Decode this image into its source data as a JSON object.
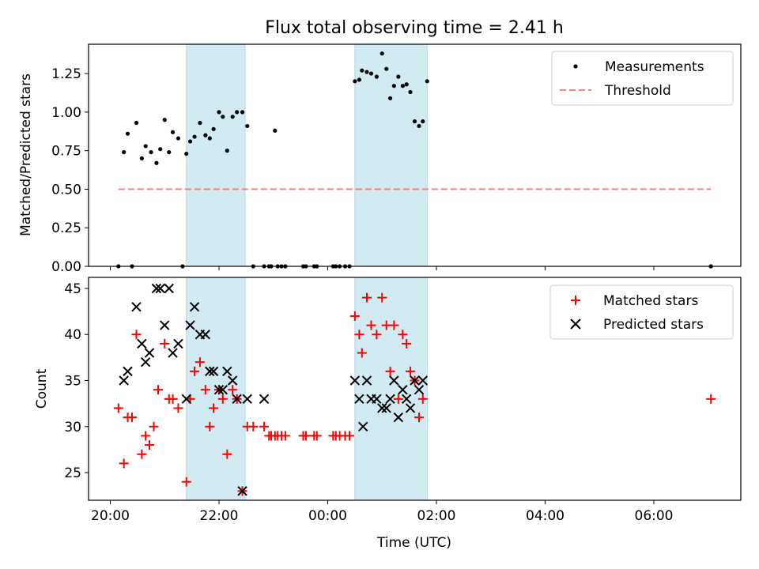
{
  "figure": {
    "title": "Flux total observing time = 2.41 h",
    "xlabel": "Time (UTC)",
    "x_ticks": [
      "20:00",
      "22:00",
      "00:00",
      "02:00",
      "04:00",
      "06:00"
    ],
    "x_tick_values_hours": [
      20,
      22,
      24,
      26,
      28,
      30
    ],
    "x_range_hours": [
      19.6,
      31.6
    ],
    "shaded_intervals_hours": [
      [
        21.4,
        22.48
      ],
      [
        24.5,
        25.83
      ]
    ],
    "shade_color": "#add8e6"
  },
  "chart_data": [
    {
      "type": "scatter",
      "ylabel": "Matched/Predicted stars",
      "ylim": [
        0,
        1.44
      ],
      "y_ticks": [
        0.0,
        0.25,
        0.5,
        0.75,
        1.0,
        1.25
      ],
      "y_tick_labels": [
        "0.00",
        "0.25",
        "0.50",
        "0.75",
        "1.00",
        "1.25"
      ],
      "legend_position": "top-right",
      "series": [
        {
          "name": "Measurements",
          "color": "#000000",
          "marker": "dot",
          "x": [
            20.15,
            20.25,
            20.4,
            20.32,
            20.48,
            20.58,
            20.65,
            20.75,
            20.85,
            20.92,
            21.0,
            21.08,
            21.15,
            21.25,
            21.33,
            21.4,
            21.47,
            21.55,
            21.65,
            21.75,
            21.83,
            21.9,
            22.0,
            22.07,
            22.15,
            22.25,
            22.33,
            22.43,
            22.52,
            22.63,
            22.83,
            22.92,
            22.96,
            23.03,
            23.08,
            23.15,
            23.22,
            23.55,
            23.6,
            23.75,
            23.8,
            24.1,
            24.15,
            24.22,
            24.32,
            24.4,
            24.5,
            24.58,
            24.63,
            24.72,
            24.8,
            24.9,
            25.0,
            25.08,
            25.15,
            25.22,
            25.3,
            25.38,
            25.45,
            25.52,
            25.6,
            25.68,
            25.75,
            25.83,
            31.05
          ],
          "y": [
            0,
            0.74,
            0,
            0.86,
            0.93,
            0.7,
            0.78,
            0.74,
            0.67,
            0.76,
            0.95,
            0.74,
            0.87,
            0.83,
            0,
            0.73,
            0.81,
            0.84,
            0.93,
            0.85,
            0.83,
            0.89,
            1.0,
            0.97,
            0.75,
            0.97,
            1.0,
            1.0,
            0.91,
            0,
            0,
            0,
            0,
            0.88,
            0,
            0,
            0,
            0,
            0,
            0,
            0,
            0,
            0,
            0,
            0,
            0,
            1.2,
            1.21,
            1.27,
            1.26,
            1.25,
            1.23,
            1.38,
            1.28,
            1.09,
            1.17,
            1.23,
            1.17,
            1.18,
            1.13,
            0.94,
            0.91,
            0.94,
            1.2,
            0
          ]
        },
        {
          "name": "Threshold",
          "color": "#ff7f7f",
          "style": "dashed",
          "x": [
            20.15,
            31.05
          ],
          "y": [
            0.5,
            0.5
          ]
        }
      ]
    },
    {
      "type": "scatter",
      "ylabel": "Count",
      "ylim": [
        22,
        46.2
      ],
      "y_ticks": [
        25,
        30,
        35,
        40,
        45
      ],
      "y_tick_labels": [
        "25",
        "30",
        "35",
        "40",
        "45"
      ],
      "legend_position": "top-right",
      "series": [
        {
          "name": "Matched stars",
          "color": "#ff0000",
          "marker": "plus",
          "x": [
            20.15,
            20.25,
            20.32,
            20.4,
            20.48,
            20.58,
            20.65,
            20.72,
            20.8,
            20.88,
            21.0,
            21.08,
            21.15,
            21.25,
            21.4,
            21.47,
            21.55,
            21.65,
            21.75,
            21.83,
            21.9,
            22.0,
            22.07,
            22.15,
            22.25,
            22.33,
            22.43,
            22.52,
            22.63,
            22.83,
            22.92,
            22.96,
            23.03,
            23.08,
            23.15,
            23.22,
            23.55,
            23.6,
            23.75,
            23.8,
            24.1,
            24.15,
            24.22,
            24.32,
            24.4,
            24.5,
            24.58,
            24.63,
            24.72,
            24.8,
            24.9,
            25.0,
            25.08,
            25.15,
            25.22,
            25.3,
            25.38,
            25.45,
            25.52,
            25.6,
            25.68,
            25.75,
            31.05
          ],
          "y": [
            32,
            26,
            31,
            31,
            40,
            27,
            29,
            28,
            30,
            34,
            39,
            33,
            33,
            32,
            24,
            33,
            36,
            37,
            34,
            30,
            32,
            34,
            33,
            27,
            34,
            33,
            23,
            30,
            30,
            30,
            29,
            29,
            29,
            29,
            29,
            29,
            29,
            29,
            29,
            29,
            29,
            29,
            29,
            29,
            29,
            42,
            40,
            38,
            44,
            41,
            40,
            44,
            41,
            36,
            41,
            33,
            40,
            39,
            36,
            35,
            31,
            33,
            33
          ]
        },
        {
          "name": "Predicted stars",
          "color": "#000000",
          "marker": "x",
          "x": [
            20.25,
            20.32,
            20.48,
            20.58,
            20.65,
            20.72,
            20.85,
            20.92,
            21.0,
            21.08,
            21.15,
            21.25,
            21.4,
            21.47,
            21.55,
            21.65,
            21.75,
            21.83,
            21.9,
            22.0,
            22.07,
            22.15,
            22.25,
            22.33,
            22.43,
            22.52,
            22.83,
            24.5,
            24.58,
            24.65,
            24.72,
            24.8,
            24.9,
            25.0,
            25.08,
            25.15,
            25.22,
            25.3,
            25.38,
            25.45,
            25.52,
            25.6,
            25.68,
            25.75
          ],
          "y": [
            35,
            36,
            43,
            39,
            37,
            38,
            45,
            45,
            41,
            45,
            38,
            39,
            33,
            41,
            43,
            40,
            40,
            36,
            36,
            34,
            34,
            36,
            35,
            33,
            23,
            33,
            33,
            35,
            33,
            30,
            35,
            33,
            33,
            32,
            32,
            33,
            35,
            31,
            34,
            33,
            32,
            35,
            34,
            35
          ]
        }
      ]
    }
  ]
}
